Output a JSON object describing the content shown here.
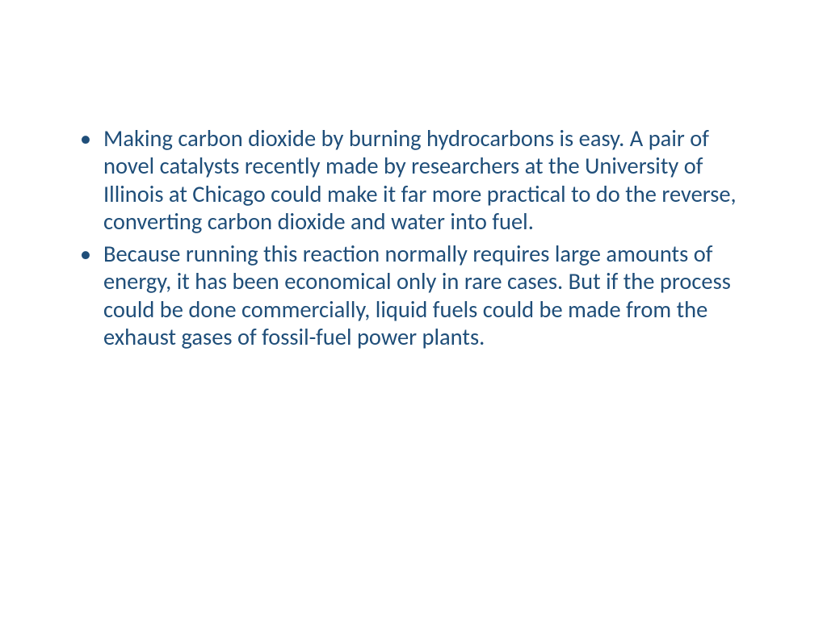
{
  "slide": {
    "text_color": "#1f4e79",
    "background_color": "#ffffff",
    "font_family": "Calibri",
    "font_size_pt": 28,
    "bullets": [
      {
        "text": "Making carbon dioxide by burning hydrocarbons is easy. A pair of novel catalysts recently made by researchers at the University of Illinois at Chicago could make it far more practical to do the reverse, converting carbon dioxide and water into fuel."
      },
      {
        "text": "Because running this reaction normally requires large amounts of energy, it has been economical only in rare cases. But if the process could be done commercially, liquid fuels could be made from the exhaust gases of fossil-fuel power plants."
      }
    ]
  }
}
